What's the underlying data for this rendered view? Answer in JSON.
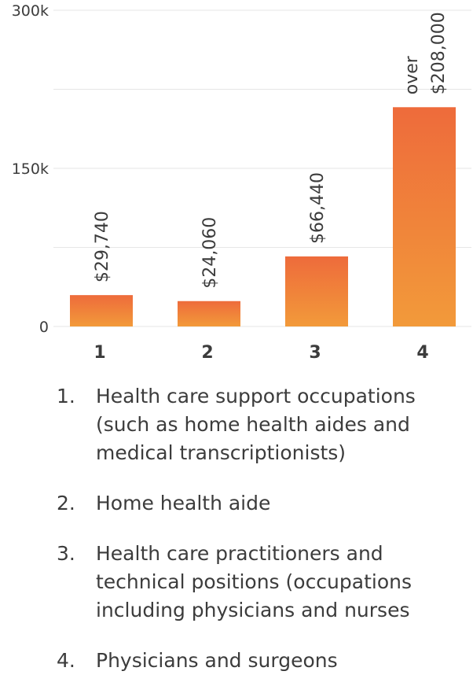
{
  "chart_data": {
    "type": "bar",
    "categories": [
      "1",
      "2",
      "3",
      "4"
    ],
    "values": [
      29740,
      24060,
      66440,
      208000
    ],
    "data_labels": [
      "$29,740",
      "$24,060",
      "$66,440",
      "over $208,000"
    ],
    "y_tick_labels": [
      "0",
      "150k",
      "300k"
    ],
    "y_ticks": [
      0,
      150000,
      300000
    ],
    "ylim": [
      0,
      300000
    ],
    "grid": true,
    "bar_gradient": [
      "#ee6b3b",
      "#f29a3a"
    ],
    "title": "",
    "xlabel": "",
    "ylabel": ""
  },
  "legend": {
    "items": [
      {
        "number": "1.",
        "text": "Health care support occupations (such as home health aides and medical transcriptionists)"
      },
      {
        "number": "2.",
        "text": "Home health aide"
      },
      {
        "number": "3.",
        "text": "Health care practitioners and technical positions (occupations including physicians and nurses"
      },
      {
        "number": "4.",
        "text": "Physicians and surgeons"
      }
    ]
  }
}
